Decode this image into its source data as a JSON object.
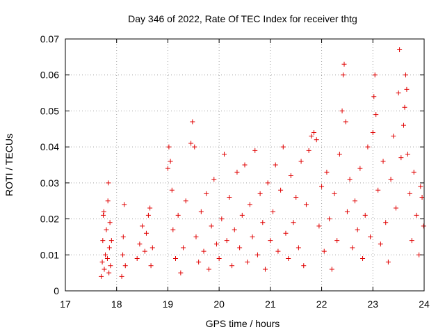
{
  "chart_data": {
    "type": "scatter",
    "title": "Day 346 of 2022, Rate Of TEC Index for receiver thtg",
    "xlabel": "GPS time / hours",
    "ylabel": "ROTI / TECUs",
    "xlim": [
      17,
      24
    ],
    "ylim": [
      0,
      0.07
    ],
    "xticks": [
      17,
      18,
      19,
      20,
      21,
      22,
      23,
      24
    ],
    "xtick_labels": [
      "17",
      "18",
      "19",
      "20",
      "21",
      "22",
      "23",
      "24"
    ],
    "yticks": [
      0,
      0.01,
      0.02,
      0.03,
      0.04,
      0.05,
      0.06,
      0.07
    ],
    "ytick_labels": [
      "0",
      "0.01",
      "0.02",
      "0.03",
      "0.04",
      "0.05",
      "0.06",
      "0.07"
    ],
    "grid": true,
    "marker": "+",
    "series": [
      {
        "name": "ROTI",
        "color": "#e00000",
        "points": [
          [
            17.7,
            0.004
          ],
          [
            17.72,
            0.008
          ],
          [
            17.73,
            0.014
          ],
          [
            17.74,
            0.021
          ],
          [
            17.75,
            0.022
          ],
          [
            17.76,
            0.006
          ],
          [
            17.78,
            0.01
          ],
          [
            17.8,
            0.017
          ],
          [
            17.82,
            0.009
          ],
          [
            17.83,
            0.025
          ],
          [
            17.84,
            0.03
          ],
          [
            17.85,
            0.005
          ],
          [
            17.86,
            0.012
          ],
          [
            17.87,
            0.019
          ],
          [
            17.88,
            0.007
          ],
          [
            17.9,
            0.014
          ],
          [
            18.1,
            0.004
          ],
          [
            18.12,
            0.01
          ],
          [
            18.13,
            0.015
          ],
          [
            18.15,
            0.024
          ],
          [
            18.17,
            0.007
          ],
          [
            18.4,
            0.009
          ],
          [
            18.45,
            0.013
          ],
          [
            18.5,
            0.018
          ],
          [
            18.55,
            0.011
          ],
          [
            18.58,
            0.016
          ],
          [
            18.62,
            0.021
          ],
          [
            18.65,
            0.023
          ],
          [
            18.67,
            0.007
          ],
          [
            18.7,
            0.012
          ],
          [
            19.0,
            0.034
          ],
          [
            19.02,
            0.04
          ],
          [
            19.05,
            0.036
          ],
          [
            19.08,
            0.028
          ],
          [
            19.1,
            0.017
          ],
          [
            19.15,
            0.009
          ],
          [
            19.2,
            0.021
          ],
          [
            19.25,
            0.005
          ],
          [
            19.3,
            0.012
          ],
          [
            19.35,
            0.025
          ],
          [
            19.45,
            0.041
          ],
          [
            19.48,
            0.047
          ],
          [
            19.52,
            0.04
          ],
          [
            19.55,
            0.015
          ],
          [
            19.6,
            0.008
          ],
          [
            19.65,
            0.022
          ],
          [
            19.7,
            0.011
          ],
          [
            19.75,
            0.027
          ],
          [
            19.8,
            0.006
          ],
          [
            19.85,
            0.018
          ],
          [
            19.9,
            0.031
          ],
          [
            19.95,
            0.013
          ],
          [
            20.0,
            0.009
          ],
          [
            20.05,
            0.02
          ],
          [
            20.1,
            0.038
          ],
          [
            20.15,
            0.014
          ],
          [
            20.2,
            0.026
          ],
          [
            20.25,
            0.007
          ],
          [
            20.3,
            0.017
          ],
          [
            20.35,
            0.033
          ],
          [
            20.4,
            0.012
          ],
          [
            20.45,
            0.021
          ],
          [
            20.5,
            0.035
          ],
          [
            20.55,
            0.008
          ],
          [
            20.6,
            0.024
          ],
          [
            20.65,
            0.015
          ],
          [
            20.7,
            0.039
          ],
          [
            20.75,
            0.01
          ],
          [
            20.8,
            0.027
          ],
          [
            20.85,
            0.019
          ],
          [
            20.9,
            0.006
          ],
          [
            20.95,
            0.03
          ],
          [
            21.0,
            0.014
          ],
          [
            21.05,
            0.022
          ],
          [
            21.1,
            0.035
          ],
          [
            21.15,
            0.011
          ],
          [
            21.2,
            0.028
          ],
          [
            21.25,
            0.04
          ],
          [
            21.3,
            0.016
          ],
          [
            21.35,
            0.009
          ],
          [
            21.4,
            0.032
          ],
          [
            21.45,
            0.019
          ],
          [
            21.5,
            0.026
          ],
          [
            21.55,
            0.012
          ],
          [
            21.6,
            0.036
          ],
          [
            21.65,
            0.007
          ],
          [
            21.7,
            0.024
          ],
          [
            21.75,
            0.039
          ],
          [
            21.8,
            0.043
          ],
          [
            21.85,
            0.044
          ],
          [
            21.9,
            0.042
          ],
          [
            21.95,
            0.018
          ],
          [
            22.0,
            0.029
          ],
          [
            22.05,
            0.011
          ],
          [
            22.1,
            0.033
          ],
          [
            22.15,
            0.02
          ],
          [
            22.2,
            0.006
          ],
          [
            22.25,
            0.027
          ],
          [
            22.3,
            0.014
          ],
          [
            22.35,
            0.038
          ],
          [
            22.4,
            0.05
          ],
          [
            22.42,
            0.06
          ],
          [
            22.44,
            0.063
          ],
          [
            22.47,
            0.047
          ],
          [
            22.5,
            0.022
          ],
          [
            22.55,
            0.031
          ],
          [
            22.6,
            0.012
          ],
          [
            22.65,
            0.025
          ],
          [
            22.7,
            0.017
          ],
          [
            22.75,
            0.034
          ],
          [
            22.8,
            0.009
          ],
          [
            22.85,
            0.021
          ],
          [
            22.9,
            0.04
          ],
          [
            22.95,
            0.015
          ],
          [
            23.0,
            0.044
          ],
          [
            23.02,
            0.054
          ],
          [
            23.04,
            0.06
          ],
          [
            23.06,
            0.049
          ],
          [
            23.1,
            0.028
          ],
          [
            23.15,
            0.013
          ],
          [
            23.2,
            0.036
          ],
          [
            23.25,
            0.019
          ],
          [
            23.3,
            0.008
          ],
          [
            23.35,
            0.031
          ],
          [
            23.4,
            0.043
          ],
          [
            23.45,
            0.023
          ],
          [
            23.5,
            0.055
          ],
          [
            23.52,
            0.067
          ],
          [
            23.55,
            0.037
          ],
          [
            23.6,
            0.046
          ],
          [
            23.62,
            0.051
          ],
          [
            23.64,
            0.06
          ],
          [
            23.66,
            0.056
          ],
          [
            23.68,
            0.038
          ],
          [
            23.72,
            0.027
          ],
          [
            23.76,
            0.014
          ],
          [
            23.8,
            0.033
          ],
          [
            23.85,
            0.021
          ],
          [
            23.9,
            0.01
          ],
          [
            23.93,
            0.029
          ],
          [
            23.96,
            0.026
          ],
          [
            23.99,
            0.018
          ]
        ]
      }
    ]
  }
}
